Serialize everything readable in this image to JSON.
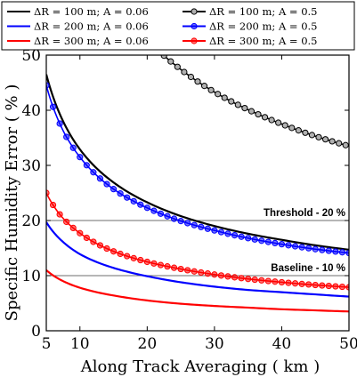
{
  "chart_data": {
    "type": "line",
    "xlabel": "Along Track Averaging ( km )",
    "ylabel": "Specific Humidity Error ( % )",
    "xlim": [
      5,
      50
    ],
    "ylim": [
      0,
      50
    ],
    "xticks": [
      "5",
      "10",
      "20",
      "30",
      "40",
      "50"
    ],
    "yticks": [
      "0",
      "10",
      "20",
      "30",
      "40",
      "50"
    ],
    "grid": false,
    "legend_position": "top, two columns",
    "series": [
      {
        "name": "ΔR = 100 m; A = 0.06",
        "color": "#000000",
        "markers": false,
        "x": [
          5,
          7.5,
          10,
          15,
          20,
          25,
          30,
          35,
          40,
          45,
          50
        ],
        "y": [
          46.5,
          38.0,
          32.9,
          26.9,
          23.3,
          20.8,
          19.0,
          17.6,
          16.5,
          15.5,
          14.7
        ]
      },
      {
        "name": "ΔR = 100 m; A = 0.5",
        "color": "#000000",
        "markers": true,
        "x": [
          22.5,
          25,
          30,
          35,
          40,
          45,
          50
        ],
        "y": [
          49.9,
          47.4,
          43.3,
          40.1,
          37.5,
          35.3,
          33.5
        ]
      },
      {
        "name": "ΔR = 200 m; A = 0.06",
        "color": "#0000ff",
        "markers": false,
        "x": [
          5,
          7.5,
          10,
          15,
          20,
          25,
          30,
          35,
          40,
          45,
          50
        ],
        "y": [
          19.7,
          16.1,
          13.9,
          11.4,
          9.9,
          8.8,
          8.0,
          7.4,
          7.0,
          6.6,
          6.2
        ]
      },
      {
        "name": "ΔR = 200 m; A = 0.5",
        "color": "#0000ff",
        "markers": true,
        "x": [
          5,
          7.5,
          10,
          15,
          20,
          25,
          30,
          35,
          40,
          45,
          50
        ],
        "y": [
          44.5,
          36.3,
          31.5,
          25.7,
          22.3,
          19.9,
          18.2,
          16.8,
          15.7,
          14.8,
          14.1
        ]
      },
      {
        "name": "ΔR = 300 m; A = 0.06",
        "color": "#ff0000",
        "markers": false,
        "x": [
          5,
          7.5,
          10,
          15,
          20,
          25,
          30,
          35,
          40,
          45,
          50
        ],
        "y": [
          11.0,
          9.0,
          7.8,
          6.4,
          5.5,
          4.9,
          4.5,
          4.2,
          3.9,
          3.7,
          3.5
        ]
      },
      {
        "name": "ΔR = 300 m; A = 0.5",
        "color": "#ff0000",
        "markers": true,
        "x": [
          5,
          7.5,
          10,
          15,
          20,
          25,
          30,
          35,
          40,
          45,
          50
        ],
        "y": [
          25.0,
          20.4,
          17.7,
          14.4,
          12.5,
          11.2,
          10.2,
          9.4,
          8.8,
          8.3,
          7.9
        ]
      }
    ],
    "reference_lines": [
      {
        "label": "Threshold - 20 %",
        "y": 20
      },
      {
        "label": "Baseline - 10 %",
        "y": 10
      }
    ]
  }
}
